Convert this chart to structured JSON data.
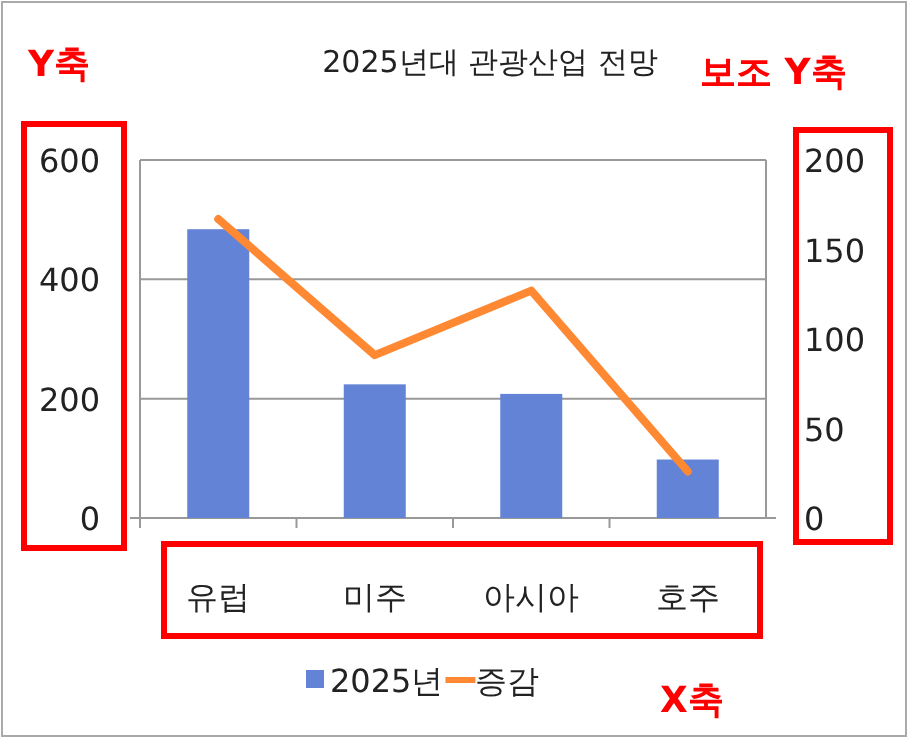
{
  "chart_data": {
    "type": "bar",
    "title": "2025년대 관광산업 전망",
    "categories": [
      "유럽",
      "미주",
      "아시아",
      "호주"
    ],
    "series": [
      {
        "name": "2025년",
        "color": "#6383d6",
        "values": [
          484,
          224,
          208,
          98
        ]
      },
      {
        "name": "증감",
        "type": "line",
        "color": "#ff8833",
        "axis": "y2",
        "values": [
          167,
          91,
          127,
          26
        ]
      }
    ],
    "ylim": [
      0,
      600
    ],
    "yticks": [
      0,
      200,
      400,
      600
    ],
    "y2lim": [
      0,
      200
    ],
    "y2ticks": [
      0,
      50,
      100,
      150,
      200
    ],
    "grid": "y",
    "legend": "bottom",
    "annotations": [
      "Y축",
      "보조 Y축",
      "X축"
    ]
  }
}
